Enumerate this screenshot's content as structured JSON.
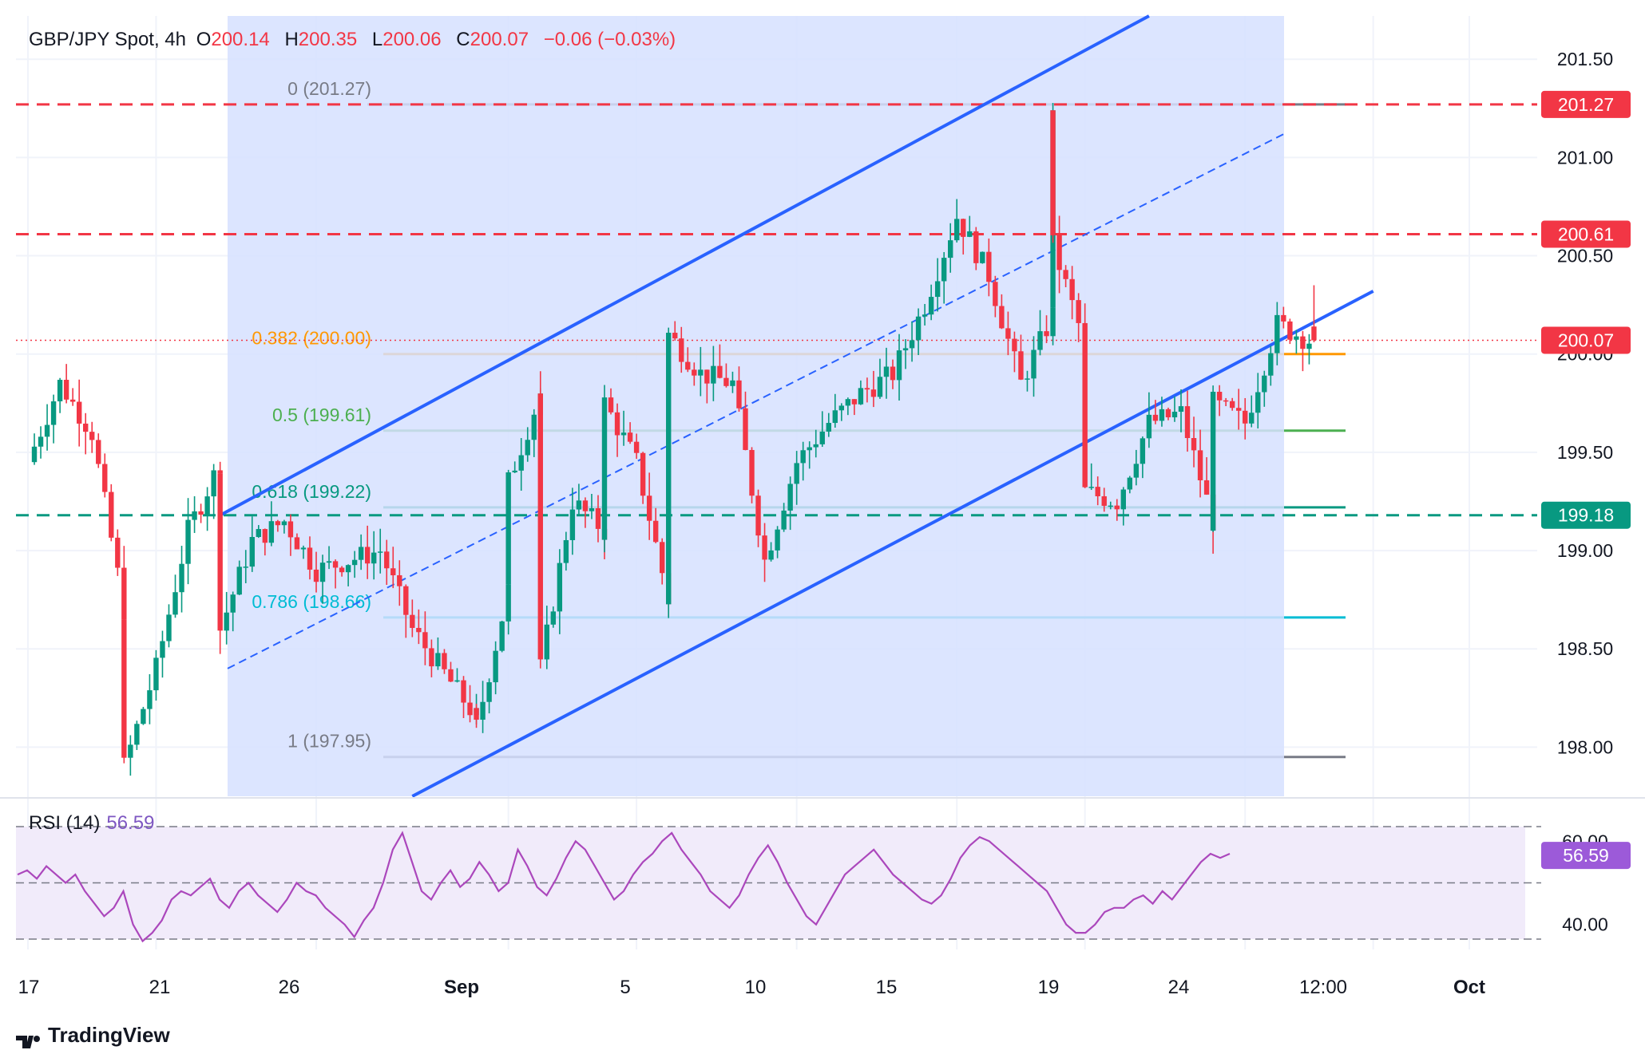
{
  "header": {
    "symbol": "GBP/JPY Spot, 4h",
    "open_label": "O",
    "open": "200.14",
    "high_label": "H",
    "high": "200.35",
    "low_label": "L",
    "low": "200.06",
    "close_label": "C",
    "close": "200.07",
    "change": "−0.06 (−0.03%)"
  },
  "rsi_header": {
    "label": "RSI (14)",
    "value": "56.59"
  },
  "branding": {
    "name": "TradingView"
  },
  "colors": {
    "up": "#089981",
    "down": "#f23645",
    "channel": "#2962ff",
    "channel_fill": "#d6e0ff",
    "rsi": "#ab47bc",
    "rsi_band": "#f1ebfa",
    "fib_0": "#787b86",
    "fib_382": "#ff9800",
    "fib_5": "#4caf50",
    "fib_618": "#089981",
    "fib_786": "#00bcd4",
    "fib_1": "#787b86",
    "resistance": "#f23645",
    "support": "#089981"
  },
  "chart_data": [
    {
      "type": "candlestick",
      "title": "GBP/JPY Spot, 4h",
      "ylim": [
        197.75,
        201.72
      ],
      "y_ticks": [
        "201.50",
        "201.00",
        "200.50",
        "200.00",
        "199.50",
        "199.00",
        "198.50",
        "198.00"
      ],
      "x_ticks": [
        "17",
        "21",
        "26",
        "Sep",
        "5",
        "10",
        "15",
        "19",
        "24",
        "12:00",
        "Oct"
      ],
      "grid": true,
      "price_series_note_points": [
        [
          "Aug 17",
          199.45
        ],
        [
          "Aug 18",
          199.85
        ],
        [
          "Aug 19",
          199.6
        ],
        [
          "Aug 20",
          198.7
        ],
        [
          "Aug 20",
          197.9
        ],
        [
          "Aug 21",
          198.4
        ],
        [
          "Aug 22",
          199.1
        ],
        [
          "Aug 23",
          199.45
        ],
        [
          "Aug 23",
          198.6
        ],
        [
          "Aug 24",
          199.05
        ],
        [
          "Aug 25",
          199.15
        ],
        [
          "Aug 26",
          198.9
        ],
        [
          "Aug 28",
          199.0
        ],
        [
          "Aug 29",
          198.6
        ],
        [
          "Aug 31",
          198.15
        ],
        [
          "Aug 31",
          198.1
        ],
        [
          "Sep 1",
          198.8
        ],
        [
          "Sep 1",
          199.35
        ],
        [
          "Sep 2",
          199.8
        ],
        [
          "Sep 2",
          198.4
        ],
        [
          "Sep 3",
          199.25
        ],
        [
          "Sep 4",
          199.1
        ],
        [
          "Sep 4",
          199.75
        ],
        [
          "Sep 5",
          199.45
        ],
        [
          "Sep 6",
          198.75
        ],
        [
          "Sep 6",
          200.1
        ],
        [
          "Sep 7",
          199.9
        ],
        [
          "Sep 8",
          199.85
        ],
        [
          "Sep 9",
          198.95
        ],
        [
          "Sep 10",
          199.45
        ],
        [
          "Sep 11",
          199.65
        ],
        [
          "Sep 12",
          199.8
        ],
        [
          "Sep 13",
          199.9
        ],
        [
          "Sep 14",
          200.25
        ],
        [
          "Sep 15",
          200.7
        ],
        [
          "Sep 16",
          200.4
        ],
        [
          "Sep 17",
          199.85
        ],
        [
          "Sep 18",
          200.2
        ],
        [
          "Sep 18",
          201.27
        ],
        [
          "Sep 18",
          200.55
        ],
        [
          "Sep 19",
          200.05
        ],
        [
          "Sep 19",
          199.3
        ],
        [
          "Sep 20",
          199.25
        ],
        [
          "Sep 21",
          199.65
        ],
        [
          "Sep 22",
          199.7
        ],
        [
          "Sep 23",
          199.15
        ],
        [
          "Sep 23",
          199.75
        ],
        [
          "Sep 24",
          199.65
        ],
        [
          "Sep 25",
          200.15
        ],
        [
          "Sep 26",
          200.07
        ]
      ],
      "last": {
        "open": 200.14,
        "high": 200.35,
        "low": 200.06,
        "close": 200.07
      },
      "fibonacci": [
        {
          "label": "0 (201.27)",
          "level": 201.27
        },
        {
          "label": "0.382 (200.00)",
          "level": 200.0
        },
        {
          "label": "0.5 (199.61)",
          "level": 199.61
        },
        {
          "label": "0.618 (199.22)",
          "level": 199.22
        },
        {
          "label": "0.786 (198.66)",
          "level": 198.66
        },
        {
          "label": "1 (197.95)",
          "level": 197.95
        }
      ],
      "horizontal_levels": [
        {
          "label": "201.27",
          "value": 201.27,
          "style": "dashed",
          "color": "#f23645"
        },
        {
          "label": "200.61",
          "value": 200.61,
          "style": "dashed",
          "color": "#f23645"
        },
        {
          "label": "199.18",
          "value": 199.18,
          "style": "dashed",
          "color": "#089981"
        },
        {
          "label": "200.07",
          "value": 200.07,
          "style": "dotted",
          "color": "#f23645"
        }
      ],
      "channel": {
        "lower": [
          [
            "Aug 29",
            197.75
          ],
          [
            "Sep 28",
            200.32
          ]
        ],
        "upper": [
          [
            "Aug 23",
            199.18
          ],
          [
            "Sep 21",
            201.72
          ]
        ]
      }
    },
    {
      "type": "line",
      "title": "RSI (14)",
      "ylim": [
        34,
        66
      ],
      "y_ticks": [
        "60.00",
        "40.00"
      ],
      "band": [
        30,
        70
      ],
      "last_value": 56.59,
      "series": [
        {
          "name": "RSI (14)",
          "values": [
            52,
            53,
            51,
            54,
            52,
            50,
            52,
            48,
            45,
            42,
            44,
            48,
            40,
            36,
            38,
            41,
            46,
            48,
            47,
            49,
            51,
            46,
            44,
            48,
            50,
            47,
            45,
            43,
            46,
            50,
            48,
            47,
            44,
            42,
            40,
            37,
            41,
            44,
            50,
            58,
            62,
            55,
            48,
            46,
            50,
            53,
            49,
            51,
            55,
            52,
            48,
            50,
            58,
            54,
            49,
            47,
            51,
            56,
            60,
            58,
            54,
            50,
            46,
            48,
            52,
            55,
            57,
            60,
            62,
            58,
            55,
            52,
            48,
            46,
            44,
            47,
            52,
            56,
            59,
            55,
            50,
            46,
            42,
            40,
            44,
            48,
            52,
            54,
            56,
            58,
            55,
            52,
            50,
            48,
            46,
            45,
            47,
            51,
            56,
            59,
            61,
            60,
            58,
            56,
            54,
            52,
            50,
            48,
            44,
            40,
            38,
            38,
            40,
            43,
            44,
            44,
            46,
            47,
            45,
            48,
            46,
            49,
            52,
            55,
            57,
            56,
            57
          ]
        }
      ]
    }
  ]
}
